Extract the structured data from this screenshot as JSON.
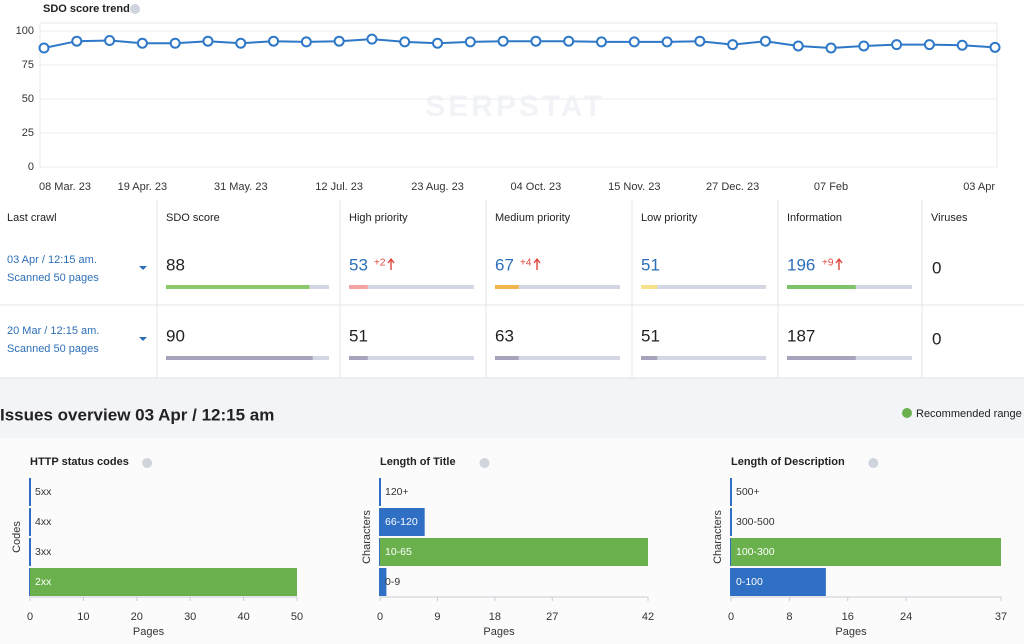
{
  "watermark": "SERPSTAT",
  "chart_data": [
    {
      "type": "line",
      "title": "SDO score trend",
      "color": "#2e78c7",
      "categories": [
        "08 Mar. 23",
        null,
        null,
        "19 Apr. 23",
        null,
        null,
        "31 May. 23",
        null,
        null,
        "12 Jul. 23",
        null,
        null,
        "23 Aug. 23",
        null,
        null,
        "04 Oct. 23",
        null,
        null,
        "15 Nov. 23",
        null,
        null,
        "27 Dec. 23",
        null,
        null,
        "07 Feb",
        null,
        null,
        null,
        null,
        "03 Apr"
      ],
      "values": [
        87.5,
        92.5,
        93,
        91,
        91,
        92.5,
        91,
        92.5,
        92,
        92.5,
        94,
        92,
        91,
        92,
        92.5,
        92.5,
        92.5,
        92,
        92,
        92,
        92.5,
        90,
        92.5,
        89,
        87.5,
        89,
        90,
        90,
        89.5,
        88
      ],
      "ylim": [
        0,
        100
      ],
      "yticks": [
        0,
        25,
        50,
        75,
        100
      ],
      "grid": true
    },
    {
      "type": "bar",
      "orientation": "horizontal",
      "title": "HTTP status codes",
      "y_label": "Codes",
      "x_label": "Pages",
      "categories": [
        "5xx",
        "4xx",
        "3xx",
        "2xx"
      ],
      "values": [
        0,
        0,
        0,
        50
      ],
      "colors": [
        "#2f6fc4",
        "#2f6fc4",
        "#2f6fc4",
        "#6ab04c"
      ],
      "xlim": [
        0,
        50
      ],
      "xticks": [
        0,
        10,
        20,
        30,
        40,
        50
      ]
    },
    {
      "type": "bar",
      "orientation": "horizontal",
      "title": "Length of Title",
      "y_label": "Characters",
      "x_label": "Pages",
      "categories": [
        "120+",
        "66-120",
        "10-65",
        "0-9"
      ],
      "values": [
        0,
        7,
        42,
        1
      ],
      "colors": [
        "#2f6fc4",
        "#2f6fc4",
        "#6ab04c",
        "#2f6fc4"
      ],
      "xlim": [
        0,
        42
      ],
      "xticks": [
        0,
        9,
        18,
        27,
        42
      ]
    },
    {
      "type": "bar",
      "orientation": "horizontal",
      "title": "Length of Description",
      "y_label": "Characters",
      "x_label": "Pages",
      "categories": [
        "500+",
        "300-500",
        "100-300",
        "0-100"
      ],
      "values": [
        0,
        0,
        37,
        13
      ],
      "colors": [
        "#2f6fc4",
        "#2f6fc4",
        "#6ab04c",
        "#2f6fc4"
      ],
      "xlim": [
        0,
        37
      ],
      "xticks": [
        0,
        8,
        16,
        24,
        37
      ]
    }
  ],
  "crawl_table": {
    "headers": [
      "Last crawl",
      "SDO score",
      "High priority",
      "Medium priority",
      "Low priority",
      "Information",
      "Viruses"
    ],
    "rows": [
      {
        "date": "03 Apr / 12:15 am.",
        "pages": "Scanned 50 pages",
        "cells": [
          {
            "value": 88
          },
          {
            "value": 53,
            "change": "+2"
          },
          {
            "value": 67,
            "change": "+4"
          },
          {
            "value": 51
          },
          {
            "value": 196,
            "change": "+9"
          },
          {
            "value": 0
          }
        ]
      },
      {
        "date": "20 Mar / 12:15 am.",
        "pages": "Scanned 50 pages",
        "cells": [
          {
            "value": 90
          },
          {
            "value": 51
          },
          {
            "value": 63
          },
          {
            "value": 51
          },
          {
            "value": 187
          },
          {
            "value": 0
          }
        ]
      }
    ]
  },
  "issues_overview": {
    "title": "Issues overview 03 Apr / 12:15 am",
    "legend": {
      "label": "Recommended range",
      "color": "#6ab04c"
    }
  }
}
